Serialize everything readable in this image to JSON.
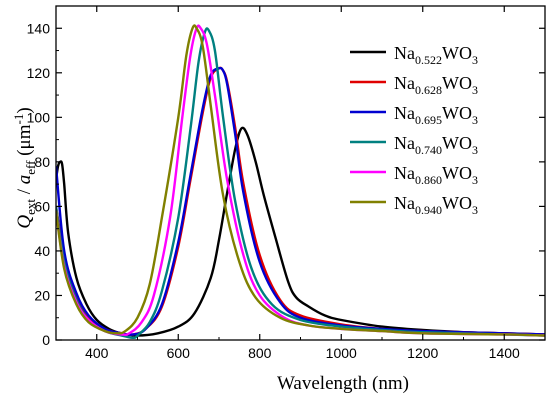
{
  "chart_data": {
    "type": "line",
    "xlabel": "Wavelength (nm)",
    "ylabel": {
      "q": "Q",
      "q_sub": "ext",
      "slash": " / ",
      "a": "a",
      "a_sub": "eff",
      "unit_open": " (μm",
      "unit_sup": "-1",
      "unit_close": ")"
    },
    "xlim": [
      300,
      1500
    ],
    "ylim": [
      0,
      150
    ],
    "xticks": [
      400,
      600,
      800,
      1000,
      1200,
      1400
    ],
    "yticks": [
      0,
      20,
      40,
      60,
      80,
      100,
      120,
      140
    ],
    "grid": false,
    "legend_position": "top-right",
    "series": [
      {
        "name": {
          "pre": "Na",
          "sub": "0.522",
          "post": "WO",
          "post_sub": "3"
        },
        "color": "#000000",
        "x": [
          300,
          305,
          310,
          315,
          320,
          330,
          350,
          375,
          400,
          430,
          460,
          500,
          550,
          600,
          640,
          680,
          700,
          720,
          740,
          755,
          770,
          790,
          810,
          840,
          870,
          890,
          920,
          960,
          1000,
          1100,
          1200,
          1300,
          1400,
          1500
        ],
        "y": [
          72,
          78,
          80,
          79,
          70,
          48,
          28,
          16,
          9,
          5,
          3,
          2,
          3,
          6,
          12,
          28,
          45,
          66,
          86,
          95,
          92,
          80,
          65,
          45,
          26,
          19,
          15,
          11,
          9,
          6,
          4.5,
          3.5,
          3,
          2.5
        ]
      },
      {
        "name": {
          "pre": "Na",
          "sub": "0.628",
          "post": "WO",
          "post_sub": "3"
        },
        "color": "#e00000",
        "x": [
          300,
          320,
          350,
          380,
          420,
          460,
          490,
          520,
          560,
          600,
          630,
          660,
          680,
          700,
          710,
          720,
          740,
          760,
          800,
          850,
          900,
          1000,
          1100,
          1200,
          1400,
          1500
        ],
        "y": [
          60,
          38,
          20,
          10,
          5,
          3,
          2.5,
          5,
          15,
          42,
          72,
          102,
          118,
          122,
          121,
          116,
          95,
          70,
          38,
          18,
          11,
          7,
          5,
          4,
          3,
          2.5
        ]
      },
      {
        "name": {
          "pre": "Na",
          "sub": "0.695",
          "post": "WO",
          "post_sub": "3"
        },
        "color": "#0000d0",
        "x": [
          300,
          320,
          350,
          380,
          420,
          460,
          490,
          520,
          560,
          600,
          630,
          660,
          680,
          700,
          710,
          720,
          740,
          760,
          800,
          850,
          900,
          1000,
          1100,
          1200,
          1400,
          1500
        ],
        "y": [
          78,
          40,
          21,
          11,
          5,
          3,
          2.5,
          5,
          16,
          44,
          74,
          104,
          119,
          122,
          121,
          115,
          92,
          66,
          35,
          17,
          10,
          6.5,
          5,
          4,
          3,
          2.5
        ]
      },
      {
        "name": {
          "pre": "Na",
          "sub": "0.740",
          "post": "WO",
          "post_sub": "3"
        },
        "color": "#008080",
        "x": [
          300,
          320,
          350,
          380,
          420,
          460,
          490,
          500,
          530,
          560,
          600,
          630,
          650,
          665,
          675,
          690,
          710,
          740,
          780,
          830,
          900,
          1000,
          1100,
          1200,
          1400,
          1500
        ],
        "y": [
          60,
          35,
          18,
          9,
          4,
          2,
          1,
          2,
          8,
          22,
          55,
          95,
          125,
          138,
          139,
          130,
          100,
          62,
          32,
          16,
          9,
          6,
          4.5,
          3.5,
          2.5,
          2
        ]
      },
      {
        "name": {
          "pre": "Na",
          "sub": "0.860",
          "post": "WO",
          "post_sub": "3"
        },
        "color": "#ff00ff",
        "x": [
          300,
          320,
          350,
          380,
          420,
          460,
          480,
          510,
          540,
          580,
          610,
          630,
          645,
          655,
          670,
          690,
          720,
          760,
          800,
          860,
          920,
          1000,
          1100,
          1200,
          1400,
          1500
        ],
        "y": [
          58,
          33,
          17,
          9,
          4,
          2.5,
          3,
          8,
          20,
          55,
          100,
          128,
          140,
          140,
          133,
          110,
          72,
          38,
          20,
          10,
          6.5,
          5,
          4,
          3,
          2.5,
          2
        ]
      },
      {
        "name": {
          "pre": "Na",
          "sub": "0.940",
          "post": "WO",
          "post_sub": "3"
        },
        "color": "#808000",
        "x": [
          300,
          320,
          350,
          380,
          420,
          450,
          470,
          500,
          530,
          560,
          600,
          620,
          635,
          645,
          660,
          680,
          710,
          750,
          790,
          850,
          920,
          1000,
          1100,
          1200,
          1400,
          1500
        ],
        "y": [
          58,
          32,
          16,
          8,
          4,
          3,
          4,
          10,
          25,
          55,
          100,
          128,
          140,
          140,
          132,
          105,
          65,
          35,
          19,
          10,
          6.5,
          5,
          4,
          3,
          2.5,
          2
        ]
      }
    ]
  }
}
